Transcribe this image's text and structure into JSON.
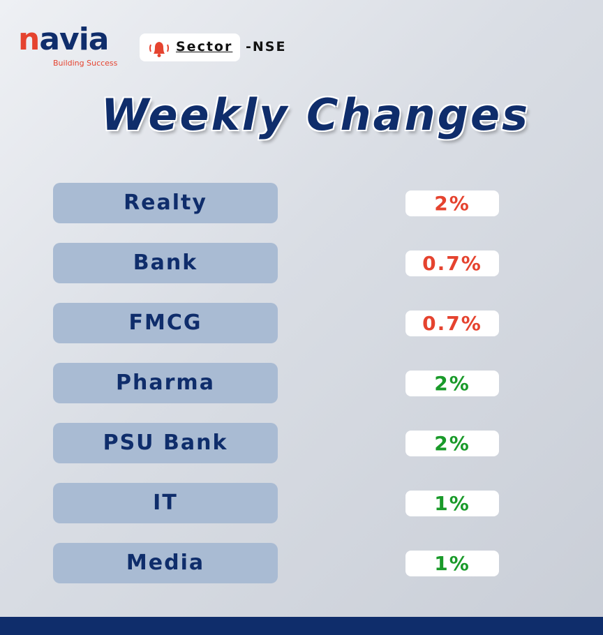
{
  "logo": {
    "name": "navia",
    "tagline": "Building Success"
  },
  "header": {
    "label": "Sector",
    "suffix": "-NSE"
  },
  "title": "Weekly Changes",
  "rows": [
    {
      "sector": "Realty",
      "change": "2%",
      "color": "#e5432f"
    },
    {
      "sector": "Bank",
      "change": "0.7%",
      "color": "#e5432f"
    },
    {
      "sector": "FMCG",
      "change": "0.7%",
      "color": "#e5432f"
    },
    {
      "sector": "Pharma",
      "change": "2%",
      "color": "#1a9a2a"
    },
    {
      "sector": "PSU Bank",
      "change": "2%",
      "color": "#1a9a2a"
    },
    {
      "sector": "IT",
      "change": "1%",
      "color": "#1a9a2a"
    },
    {
      "sector": "Media",
      "change": "1%",
      "color": "#1a9a2a"
    }
  ]
}
